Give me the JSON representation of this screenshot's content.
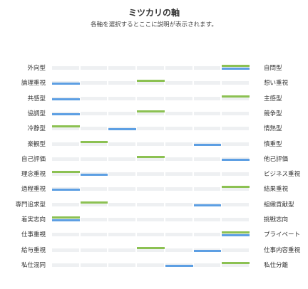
{
  "header": {
    "title": "ミツカリの軸",
    "subtitle": "各軸を選択するとここに説明が表示されます。"
  },
  "colors": {
    "green": "#8cc152",
    "blue": "#5d9fe3",
    "track": "#eef0f2"
  },
  "axes": [
    {
      "left": "外向型",
      "right": "自問型",
      "green": 7,
      "blue": 7
    },
    {
      "left": "論理重視",
      "right": "想い重視",
      "green": 4,
      "blue": 1
    },
    {
      "left": "共感型",
      "right": "主感型",
      "green": 7,
      "blue": 1
    },
    {
      "left": "協調型",
      "right": "競争型",
      "green": 4,
      "blue": 1
    },
    {
      "left": "冷静型",
      "right": "情熱型",
      "green": 1,
      "blue": 3
    },
    {
      "left": "楽観型",
      "right": "慎重型",
      "green": 2,
      "blue": 6
    },
    {
      "left": "自己評価",
      "right": "他己評価",
      "green": 4,
      "blue": 7
    },
    {
      "left": "理念重視",
      "right": "ビジネス重視",
      "green": 1,
      "blue": 2
    },
    {
      "left": "過程重視",
      "right": "結果重視",
      "green": 7,
      "blue": 1
    },
    {
      "left": "専門追求型",
      "right": "組織貢献型",
      "green": 2,
      "blue": 6
    },
    {
      "left": "着実志向",
      "right": "挑戦志向",
      "green": 1,
      "blue": 1
    },
    {
      "left": "仕事重視",
      "right": "プライベート",
      "green": 7,
      "blue": 7
    },
    {
      "left": "給与重視",
      "right": "仕事内容重視",
      "green": 4,
      "blue": 6
    },
    {
      "left": "私仕混同",
      "right": "私仕分離",
      "green": 7,
      "blue": 5
    }
  ]
}
